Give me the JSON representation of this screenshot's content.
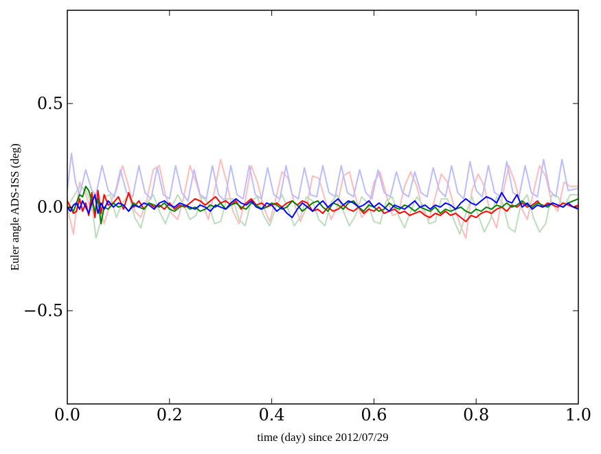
{
  "chart_data": {
    "type": "line",
    "title": "",
    "xlabel": "time (day) since 2012/07/29",
    "ylabel": "Euler angle ADS-ISS (deg)",
    "xlim": [
      0.0,
      1.0
    ],
    "ylim": [
      -0.95,
      0.95
    ],
    "xticks": [
      0.0,
      0.2,
      0.4,
      0.6,
      0.8,
      1.0
    ],
    "xtick_labels": [
      "0.0",
      "0.2",
      "0.4",
      "0.6",
      "0.8",
      "1.0"
    ],
    "yticks": [
      -0.5,
      0.0,
      0.5
    ],
    "ytick_labels": [
      "−0.5",
      "0.0",
      "0.5"
    ],
    "grid": false,
    "legend": "none",
    "series": [
      {
        "color": "#ffbbbb",
        "x": [
          0.0,
          0.012,
          0.024,
          0.036,
          0.048,
          0.06,
          0.072,
          0.084,
          0.096,
          0.108,
          0.12,
          0.132,
          0.144,
          0.156,
          0.168,
          0.18,
          0.192,
          0.204,
          0.216,
          0.228,
          0.24,
          0.252,
          0.264,
          0.276,
          0.288,
          0.3,
          0.312,
          0.324,
          0.336,
          0.348,
          0.36,
          0.372,
          0.384,
          0.396,
          0.408,
          0.42,
          0.432,
          0.444,
          0.456,
          0.468,
          0.48,
          0.492,
          0.504,
          0.516,
          0.528,
          0.54,
          0.552,
          0.564,
          0.576,
          0.588,
          0.6,
          0.612,
          0.624,
          0.636,
          0.648,
          0.66,
          0.672,
          0.684,
          0.696,
          0.708,
          0.72,
          0.732,
          0.744,
          0.756,
          0.768,
          0.78,
          0.792,
          0.804,
          0.816,
          0.828,
          0.84,
          0.852,
          0.864,
          0.876,
          0.888,
          0.9,
          0.912,
          0.924,
          0.936,
          0.948,
          0.96,
          0.972,
          0.984,
          1.0
        ],
        "y": [
          0.0,
          -0.13,
          0.12,
          0.06,
          -0.02,
          0.03,
          -0.08,
          0.02,
          0.08,
          0.2,
          0.1,
          -0.02,
          -0.05,
          0.04,
          0.18,
          0.2,
          0.06,
          -0.03,
          -0.06,
          0.05,
          0.2,
          0.12,
          0.02,
          -0.06,
          0.08,
          0.23,
          0.12,
          -0.02,
          -0.08,
          0.03,
          0.2,
          0.12,
          0.0,
          -0.07,
          0.04,
          0.17,
          0.14,
          0.02,
          -0.07,
          0.0,
          0.15,
          0.14,
          0.04,
          -0.06,
          0.0,
          0.15,
          0.17,
          0.05,
          -0.05,
          -0.02,
          0.12,
          0.17,
          0.06,
          -0.04,
          -0.03,
          0.1,
          0.17,
          0.1,
          -0.02,
          -0.06,
          0.05,
          0.16,
          0.12,
          0.01,
          -0.08,
          -0.15,
          0.08,
          0.16,
          0.1,
          -0.03,
          -0.1,
          0.06,
          0.2,
          0.12,
          0.0,
          -0.06,
          0.07,
          0.2,
          0.15,
          0.02,
          -0.02,
          0.12,
          0.1,
          0.1
        ]
      },
      {
        "color": "#bbddbb",
        "x": [
          0.0,
          0.012,
          0.024,
          0.036,
          0.048,
          0.056,
          0.064,
          0.072,
          0.084,
          0.096,
          0.108,
          0.12,
          0.132,
          0.144,
          0.156,
          0.168,
          0.18,
          0.192,
          0.204,
          0.216,
          0.228,
          0.24,
          0.252,
          0.264,
          0.276,
          0.288,
          0.3,
          0.312,
          0.324,
          0.336,
          0.348,
          0.36,
          0.372,
          0.384,
          0.396,
          0.408,
          0.42,
          0.432,
          0.444,
          0.456,
          0.468,
          0.48,
          0.492,
          0.504,
          0.516,
          0.528,
          0.54,
          0.552,
          0.564,
          0.576,
          0.588,
          0.6,
          0.612,
          0.624,
          0.636,
          0.648,
          0.66,
          0.672,
          0.684,
          0.696,
          0.708,
          0.72,
          0.732,
          0.744,
          0.756,
          0.768,
          0.78,
          0.792,
          0.804,
          0.816,
          0.828,
          0.84,
          0.852,
          0.864,
          0.876,
          0.888,
          0.9,
          0.912,
          0.924,
          0.936,
          0.948,
          0.96,
          0.972,
          0.984,
          1.0
        ],
        "y": [
          0.0,
          0.05,
          0.1,
          0.08,
          0.02,
          -0.15,
          -0.08,
          0.05,
          0.06,
          -0.05,
          0.02,
          0.06,
          -0.05,
          -0.1,
          0.02,
          0.06,
          -0.02,
          -0.08,
          0.0,
          0.06,
          0.01,
          -0.06,
          -0.04,
          0.05,
          0.02,
          -0.08,
          -0.07,
          0.04,
          0.04,
          -0.06,
          -0.09,
          0.03,
          0.05,
          -0.04,
          -0.09,
          0.0,
          0.06,
          -0.01,
          -0.09,
          -0.05,
          0.05,
          0.03,
          -0.06,
          -0.09,
          0.02,
          0.06,
          -0.02,
          -0.09,
          -0.04,
          0.05,
          0.02,
          -0.07,
          -0.08,
          0.03,
          0.05,
          -0.04,
          -0.1,
          -0.02,
          0.05,
          0.01,
          -0.08,
          -0.07,
          0.04,
          0.04,
          -0.06,
          -0.13,
          -0.03,
          0.05,
          -0.04,
          -0.12,
          -0.06,
          0.05,
          0.02,
          -0.1,
          -0.12,
          0.02,
          0.06,
          -0.05,
          -0.12,
          -0.08,
          0.06,
          0.05,
          0.0,
          0.06,
          0.06
        ]
      },
      {
        "color": "#bbbbff",
        "x": [
          0.0,
          0.008,
          0.016,
          0.024,
          0.036,
          0.048,
          0.056,
          0.068,
          0.08,
          0.092,
          0.104,
          0.116,
          0.128,
          0.14,
          0.152,
          0.164,
          0.176,
          0.188,
          0.2,
          0.212,
          0.224,
          0.236,
          0.248,
          0.26,
          0.272,
          0.284,
          0.296,
          0.308,
          0.32,
          0.332,
          0.344,
          0.356,
          0.368,
          0.38,
          0.392,
          0.404,
          0.416,
          0.428,
          0.44,
          0.452,
          0.464,
          0.476,
          0.488,
          0.5,
          0.512,
          0.524,
          0.536,
          0.548,
          0.56,
          0.572,
          0.584,
          0.596,
          0.608,
          0.62,
          0.632,
          0.644,
          0.656,
          0.668,
          0.68,
          0.692,
          0.704,
          0.716,
          0.728,
          0.74,
          0.752,
          0.764,
          0.776,
          0.788,
          0.8,
          0.812,
          0.824,
          0.836,
          0.848,
          0.86,
          0.872,
          0.884,
          0.896,
          0.908,
          0.92,
          0.932,
          0.944,
          0.956,
          0.968,
          0.98,
          1.0
        ],
        "y": [
          0.08,
          0.26,
          0.12,
          0.06,
          0.18,
          0.08,
          0.06,
          0.2,
          0.08,
          0.05,
          0.18,
          0.07,
          0.05,
          0.2,
          0.07,
          0.04,
          0.19,
          0.06,
          0.04,
          0.2,
          0.07,
          0.03,
          0.18,
          0.06,
          0.04,
          0.2,
          0.06,
          0.03,
          0.2,
          0.06,
          0.04,
          0.2,
          0.06,
          0.04,
          0.19,
          0.06,
          0.04,
          0.2,
          0.06,
          0.04,
          0.19,
          0.06,
          0.05,
          0.2,
          0.07,
          0.05,
          0.2,
          0.07,
          0.05,
          0.18,
          0.07,
          0.04,
          0.18,
          0.07,
          0.05,
          0.17,
          0.07,
          0.05,
          0.17,
          0.07,
          0.05,
          0.19,
          0.08,
          0.05,
          0.2,
          0.07,
          0.04,
          0.22,
          0.08,
          0.05,
          0.2,
          0.07,
          0.05,
          0.22,
          0.07,
          0.05,
          0.2,
          0.07,
          0.05,
          0.23,
          0.08,
          0.05,
          0.23,
          0.08,
          0.09
        ]
      },
      {
        "color": "#ff0000",
        "x": [
          0.0,
          0.006,
          0.012,
          0.018,
          0.024,
          0.03,
          0.036,
          0.042,
          0.048,
          0.054,
          0.06,
          0.066,
          0.072,
          0.08,
          0.09,
          0.1,
          0.11,
          0.12,
          0.13,
          0.14,
          0.15,
          0.16,
          0.17,
          0.18,
          0.19,
          0.2,
          0.21,
          0.22,
          0.23,
          0.24,
          0.25,
          0.26,
          0.27,
          0.28,
          0.29,
          0.3,
          0.31,
          0.32,
          0.33,
          0.34,
          0.35,
          0.36,
          0.37,
          0.38,
          0.39,
          0.4,
          0.41,
          0.42,
          0.43,
          0.44,
          0.45,
          0.46,
          0.47,
          0.48,
          0.49,
          0.5,
          0.51,
          0.52,
          0.53,
          0.54,
          0.55,
          0.56,
          0.57,
          0.58,
          0.59,
          0.6,
          0.61,
          0.62,
          0.63,
          0.64,
          0.65,
          0.66,
          0.67,
          0.68,
          0.69,
          0.7,
          0.71,
          0.72,
          0.73,
          0.74,
          0.75,
          0.76,
          0.77,
          0.78,
          0.79,
          0.8,
          0.81,
          0.82,
          0.83,
          0.84,
          0.85,
          0.86,
          0.87,
          0.88,
          0.89,
          0.9,
          0.91,
          0.92,
          0.93,
          0.94,
          0.95,
          0.96,
          0.97,
          0.98,
          0.99,
          1.0
        ],
        "y": [
          0.03,
          0.0,
          -0.03,
          -0.02,
          0.04,
          -0.02,
          0.02,
          -0.04,
          0.07,
          -0.05,
          0.08,
          -0.03,
          0.06,
          0.01,
          0.02,
          0.05,
          -0.01,
          0.07,
          0.0,
          0.03,
          -0.01,
          0.02,
          0.0,
          0.01,
          -0.01,
          0.02,
          -0.01,
          0.01,
          0.0,
          0.02,
          0.04,
          0.03,
          0.01,
          0.03,
          0.05,
          0.02,
          0.03,
          0.01,
          0.03,
          -0.01,
          0.02,
          0.04,
          0.01,
          0.02,
          0.0,
          0.01,
          0.02,
          0.0,
          0.02,
          0.03,
          0.01,
          0.03,
          0.02,
          -0.02,
          -0.01,
          -0.03,
          0.0,
          -0.02,
          -0.01,
          0.01,
          -0.01,
          -0.02,
          0.0,
          -0.03,
          -0.01,
          -0.02,
          0.0,
          -0.03,
          -0.02,
          -0.01,
          -0.03,
          -0.02,
          -0.04,
          -0.03,
          -0.02,
          -0.04,
          -0.05,
          -0.03,
          -0.04,
          -0.02,
          -0.04,
          -0.03,
          -0.05,
          -0.07,
          -0.04,
          -0.05,
          -0.03,
          -0.02,
          -0.03,
          -0.01,
          0.0,
          -0.02,
          0.01,
          0.0,
          0.02,
          0.0,
          0.01,
          0.03,
          0.0,
          0.02,
          0.01,
          0.0,
          0.02,
          0.01,
          0.0,
          0.01
        ]
      },
      {
        "color": "#008000",
        "x": [
          0.0,
          0.006,
          0.012,
          0.018,
          0.024,
          0.03,
          0.036,
          0.042,
          0.048,
          0.054,
          0.06,
          0.066,
          0.072,
          0.08,
          0.09,
          0.1,
          0.11,
          0.12,
          0.13,
          0.14,
          0.15,
          0.16,
          0.17,
          0.18,
          0.19,
          0.2,
          0.21,
          0.22,
          0.23,
          0.24,
          0.25,
          0.26,
          0.27,
          0.28,
          0.29,
          0.3,
          0.31,
          0.32,
          0.33,
          0.34,
          0.35,
          0.36,
          0.37,
          0.38,
          0.39,
          0.4,
          0.41,
          0.42,
          0.43,
          0.44,
          0.45,
          0.46,
          0.47,
          0.48,
          0.49,
          0.5,
          0.51,
          0.52,
          0.53,
          0.54,
          0.55,
          0.56,
          0.57,
          0.58,
          0.59,
          0.6,
          0.61,
          0.62,
          0.63,
          0.64,
          0.65,
          0.66,
          0.67,
          0.68,
          0.69,
          0.7,
          0.71,
          0.72,
          0.73,
          0.74,
          0.75,
          0.76,
          0.77,
          0.78,
          0.79,
          0.8,
          0.81,
          0.82,
          0.83,
          0.84,
          0.85,
          0.86,
          0.87,
          0.88,
          0.89,
          0.9,
          0.91,
          0.92,
          0.93,
          0.94,
          0.95,
          0.96,
          0.97,
          0.98,
          0.99,
          1.0
        ],
        "y": [
          -0.01,
          0.0,
          -0.02,
          0.02,
          0.06,
          0.05,
          0.1,
          0.08,
          0.03,
          -0.02,
          0.04,
          -0.08,
          0.0,
          -0.01,
          0.02,
          0.0,
          0.01,
          -0.02,
          0.02,
          0.0,
          -0.01,
          0.02,
          0.01,
          0.0,
          0.02,
          -0.01,
          -0.02,
          0.0,
          0.01,
          -0.01,
          0.0,
          -0.02,
          -0.01,
          0.01,
          0.0,
          0.02,
          -0.01,
          0.01,
          0.02,
          0.0,
          -0.01,
          0.02,
          0.01,
          -0.01,
          0.0,
          0.02,
          0.01,
          -0.01,
          0.0,
          0.03,
          0.01,
          -0.02,
          0.0,
          0.02,
          0.03,
          0.0,
          -0.02,
          0.02,
          0.01,
          -0.01,
          0.02,
          0.03,
          0.0,
          -0.02,
          0.01,
          0.0,
          -0.02,
          -0.01,
          0.02,
          0.0,
          -0.01,
          0.01,
          0.0,
          -0.02,
          0.0,
          -0.01,
          -0.02,
          0.0,
          -0.03,
          -0.01,
          -0.02,
          -0.01,
          0.0,
          -0.02,
          -0.03,
          -0.01,
          -0.02,
          0.0,
          -0.01,
          0.01,
          0.0,
          0.02,
          0.0,
          0.01,
          0.03,
          0.01,
          0.0,
          0.02,
          0.01,
          0.0,
          0.02,
          0.01,
          0.0,
          0.02,
          0.03,
          0.04
        ]
      },
      {
        "color": "#0000ff",
        "x": [
          0.0,
          0.006,
          0.012,
          0.018,
          0.024,
          0.03,
          0.036,
          0.042,
          0.048,
          0.054,
          0.06,
          0.066,
          0.072,
          0.08,
          0.09,
          0.1,
          0.11,
          0.12,
          0.13,
          0.14,
          0.15,
          0.16,
          0.17,
          0.18,
          0.19,
          0.2,
          0.21,
          0.22,
          0.23,
          0.24,
          0.25,
          0.26,
          0.27,
          0.28,
          0.29,
          0.3,
          0.31,
          0.32,
          0.33,
          0.34,
          0.35,
          0.36,
          0.37,
          0.38,
          0.39,
          0.4,
          0.41,
          0.42,
          0.43,
          0.44,
          0.45,
          0.46,
          0.47,
          0.48,
          0.49,
          0.5,
          0.51,
          0.52,
          0.53,
          0.54,
          0.55,
          0.56,
          0.57,
          0.58,
          0.59,
          0.6,
          0.61,
          0.62,
          0.63,
          0.64,
          0.65,
          0.66,
          0.67,
          0.68,
          0.69,
          0.7,
          0.71,
          0.72,
          0.73,
          0.74,
          0.75,
          0.76,
          0.77,
          0.78,
          0.79,
          0.8,
          0.81,
          0.82,
          0.83,
          0.84,
          0.85,
          0.86,
          0.87,
          0.88,
          0.89,
          0.9,
          0.91,
          0.92,
          0.93,
          0.94,
          0.95,
          0.96,
          0.97,
          0.98,
          0.99,
          1.0
        ],
        "y": [
          0.0,
          -0.02,
          0.01,
          0.02,
          -0.01,
          0.03,
          0.0,
          -0.03,
          0.02,
          0.06,
          -0.03,
          0.02,
          -0.01,
          0.03,
          0.0,
          0.02,
          0.01,
          -0.02,
          0.01,
          0.0,
          0.02,
          0.01,
          -0.01,
          0.02,
          0.03,
          0.01,
          0.0,
          0.02,
          0.01,
          0.0,
          -0.01,
          0.01,
          0.0,
          -0.02,
          0.01,
          0.0,
          -0.01,
          0.02,
          0.04,
          0.02,
          0.01,
          0.03,
          0.0,
          -0.01,
          0.02,
          0.01,
          -0.02,
          0.0,
          -0.03,
          -0.05,
          -0.01,
          0.02,
          0.0,
          -0.02,
          0.01,
          0.03,
          0.0,
          0.02,
          0.04,
          0.01,
          0.03,
          0.02,
          0.0,
          0.01,
          0.03,
          0.0,
          0.02,
          0.0,
          -0.02,
          0.01,
          0.0,
          -0.01,
          0.01,
          0.03,
          0.0,
          0.01,
          -0.01,
          0.01,
          0.0,
          0.02,
          0.01,
          -0.01,
          0.02,
          0.04,
          0.02,
          0.01,
          0.03,
          0.05,
          0.04,
          0.02,
          0.07,
          0.03,
          0.02,
          0.06,
          0.0,
          0.02,
          -0.01,
          0.01,
          0.0,
          0.01,
          0.02,
          0.01,
          0.0,
          0.02,
          0.0,
          -0.01
        ]
      }
    ]
  }
}
